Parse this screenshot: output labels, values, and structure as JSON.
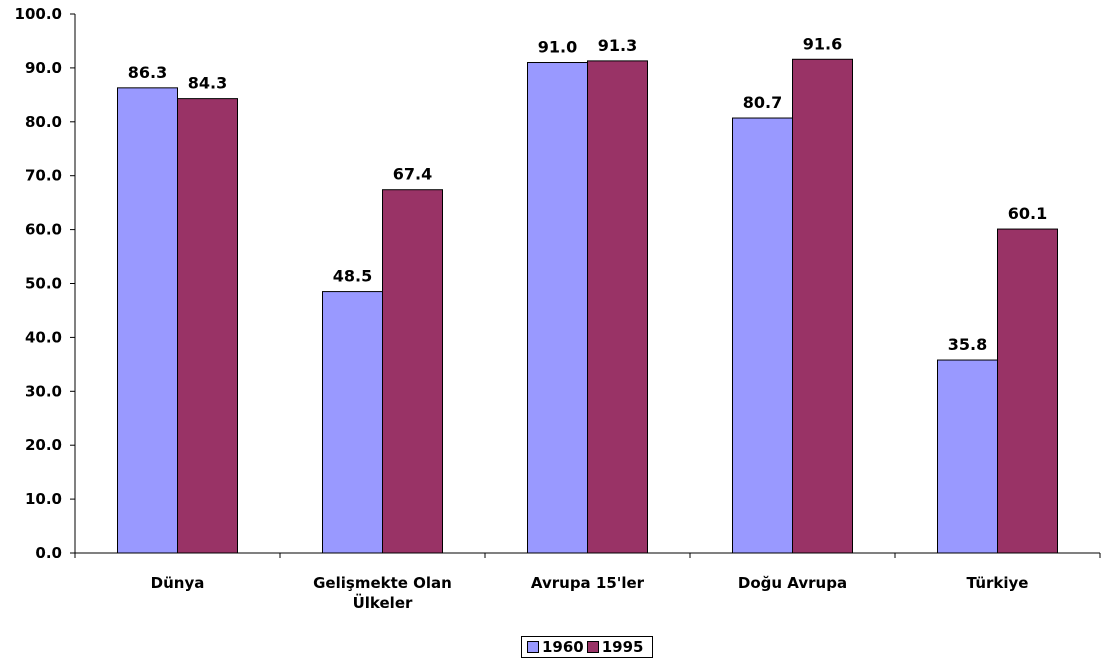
{
  "chart_data": {
    "type": "bar",
    "categories": [
      "Dünya",
      "Gelişmekte Olan Ülkeler",
      "Avrupa 15'ler",
      "Doğu Avrupa",
      "Türkiye"
    ],
    "category_lines": [
      [
        "Dünya"
      ],
      [
        "Gelişmekte Olan",
        "Ülkeler"
      ],
      [
        "Avrupa 15'ler"
      ],
      [
        "Doğu Avrupa"
      ],
      [
        "Türkiye"
      ]
    ],
    "series": [
      {
        "name": "1960",
        "values": [
          86.3,
          48.5,
          91.0,
          80.7,
          35.8
        ],
        "labels": [
          "86.3",
          "48.5",
          "91.0",
          "80.7",
          "35.8"
        ],
        "color": "#9999ff"
      },
      {
        "name": "1995",
        "values": [
          84.3,
          67.4,
          91.3,
          91.6,
          60.1
        ],
        "labels": [
          "84.3",
          "67.4",
          "91.3",
          "91.6",
          "60.1"
        ],
        "color": "#993366"
      }
    ],
    "ylim": [
      0,
      100
    ],
    "yticks": [
      "0.0",
      "10.0",
      "20.0",
      "30.0",
      "40.0",
      "50.0",
      "60.0",
      "70.0",
      "80.0",
      "90.0",
      "100.0"
    ],
    "title": "",
    "xlabel": "",
    "ylabel": "",
    "grid": false,
    "legend_position": "bottom-center"
  }
}
